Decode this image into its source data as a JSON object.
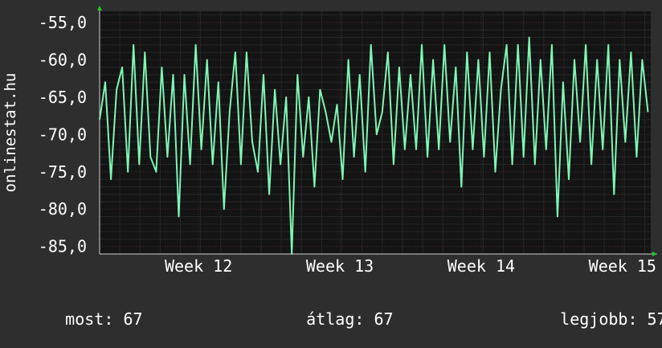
{
  "chart_data": {
    "type": "line",
    "ylabel": "onlinestat.hu",
    "y_ticks": [
      "-55,0",
      "-60,0",
      "-65,0",
      "-70,0",
      "-75,0",
      "-80,0",
      "-85,0"
    ],
    "y_tick_values": [
      -55,
      -60,
      -65,
      -70,
      -75,
      -80,
      -85
    ],
    "ylim": [
      -86,
      -53.5
    ],
    "x_ticks": [
      "Week 12",
      "Week 13",
      "Week 14",
      "Week 15"
    ],
    "x_tick_values": [
      12,
      13,
      14,
      15
    ],
    "xlim": [
      11.3,
      15.2
    ],
    "grid": true,
    "colors": {
      "background": "#2e2e2e",
      "plot": "#141414",
      "grid": "#4a2a2a",
      "minor_grid": "#262626",
      "line": "#7ff5b4",
      "axis": "#cfcfcf",
      "arrow": "#22cc22"
    },
    "series": [
      {
        "x": [
          11.3,
          11.34,
          11.38,
          11.42,
          11.46,
          11.5,
          11.54,
          11.58,
          11.62,
          11.66,
          11.7,
          11.74,
          11.78,
          11.82,
          11.86,
          11.9,
          11.94,
          11.98,
          12.02,
          12.06,
          12.1,
          12.14,
          12.18,
          12.22,
          12.26,
          12.3,
          12.34,
          12.38,
          12.42,
          12.46,
          12.5,
          12.54,
          12.58,
          12.62,
          12.66,
          12.7,
          12.74,
          12.78,
          12.82,
          12.86,
          12.9,
          12.94,
          12.98,
          13.02,
          13.06,
          13.1,
          13.14,
          13.18,
          13.22,
          13.26,
          13.3,
          13.34,
          13.38,
          13.42,
          13.46,
          13.5,
          13.54,
          13.58,
          13.62,
          13.66,
          13.7,
          13.74,
          13.78,
          13.82,
          13.86,
          13.9,
          13.94,
          13.98,
          14.02,
          14.06,
          14.1,
          14.14,
          14.18,
          14.22,
          14.26,
          14.3,
          14.34,
          14.38,
          14.42,
          14.46,
          14.5,
          14.54,
          14.58,
          14.62,
          14.66,
          14.7,
          14.74,
          14.78,
          14.82,
          14.86,
          14.9,
          14.94,
          14.98,
          15.02,
          15.06,
          15.1,
          15.14,
          15.18
        ],
        "y": [
          -68,
          -63,
          -76,
          -64,
          -61,
          -75,
          -58,
          -74,
          -59,
          -73,
          -75,
          -61,
          -73,
          -62,
          -81,
          -62,
          -74,
          -58,
          -72,
          -60,
          -74,
          -63,
          -80,
          -67,
          -59,
          -74,
          -59,
          -71,
          -75,
          -62,
          -78,
          -64,
          -74,
          -65,
          -86,
          -62,
          -73,
          -65,
          -77,
          -64,
          -67,
          -71,
          -66,
          -76,
          -60,
          -73,
          -62,
          -75,
          -58,
          -70,
          -67,
          -59,
          -74,
          -61,
          -72,
          -62,
          -72,
          -58,
          -73,
          -60,
          -72,
          -58,
          -71,
          -61,
          -77,
          -59,
          -72,
          -60,
          -73,
          -59,
          -75,
          -64,
          -58,
          -74,
          -58,
          -73,
          -57,
          -74,
          -60,
          -72,
          -58,
          -81,
          -63,
          -76,
          -60,
          -71,
          -58,
          -74,
          -60,
          -72,
          -58,
          -78,
          -60,
          -71,
          -59,
          -73,
          -60,
          -67
        ]
      }
    ]
  },
  "footer": {
    "current_label": "most:",
    "current_value": "67",
    "average_label": "átlag:",
    "average_value": "67",
    "best_label": "legjobb:",
    "best_value": "57"
  }
}
